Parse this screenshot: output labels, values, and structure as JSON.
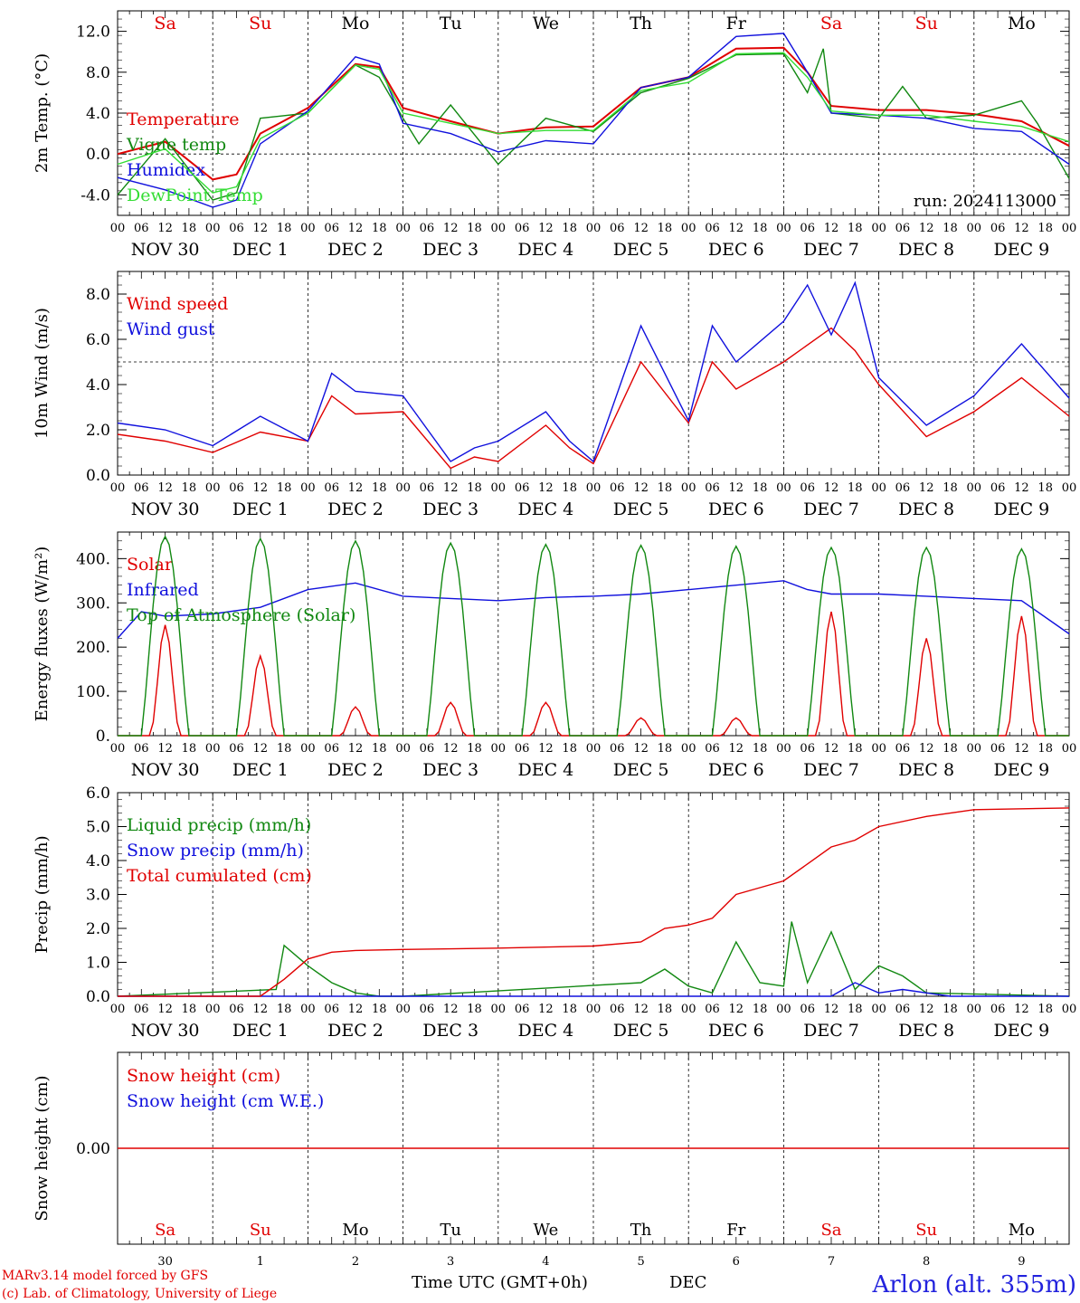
{
  "footer": {
    "model_line": "MARv3.14 model forced by GFS",
    "lab_line": "(c) Lab. of Climatology, University of Liege",
    "time_axis": "Time UTC (GMT+0h)",
    "month": "DEC",
    "station": "Arlon (alt. 355m)"
  },
  "day_names": [
    "Sa",
    "Su",
    "Mo",
    "Tu",
    "We",
    "Th",
    "Fr",
    "Sa",
    "Su",
    "Mo"
  ],
  "day_name_colors": [
    "#e00000",
    "#e00000",
    "#000000",
    "#000000",
    "#000000",
    "#000000",
    "#000000",
    "#e00000",
    "#e00000",
    "#000000"
  ],
  "date_labels": [
    "NOV 30",
    "DEC  1",
    "DEC  2",
    "DEC  3",
    "DEC  4",
    "DEC  5",
    "DEC  6",
    "DEC  7",
    "DEC  8",
    "DEC  9"
  ],
  "day_numbers": [
    "30",
    "1",
    "2",
    "3",
    "4",
    "5",
    "6",
    "7",
    "8",
    "9"
  ],
  "hour_labels": [
    "00",
    "06",
    "12",
    "18"
  ],
  "hour_end_label": "00",
  "run_label": "run: 2024113000",
  "colors": {
    "red": "#e00000",
    "green": "#118811",
    "blue": "#1010dd",
    "lightgreen": "#33dd33",
    "grid": "#000000"
  },
  "chart_data": [
    {
      "type": "line",
      "ylabel": "2m Temp. (°C)",
      "ylim": [
        -6,
        14
      ],
      "ytick_labels": [
        "-4.0",
        "0.0",
        "4.0",
        "8.0",
        "12.0"
      ],
      "dashed_ref": 0,
      "x_units": "hours from 2024-11-30 00 UTC",
      "series": [
        {
          "name": "Temperature",
          "color": "red",
          "x": [
            0,
            12,
            24,
            30,
            36,
            48,
            60,
            66,
            72,
            84,
            96,
            108,
            120,
            132,
            144,
            156,
            168,
            174,
            180,
            192,
            204,
            216,
            228,
            240
          ],
          "y": [
            0,
            1.2,
            -2.5,
            -2,
            2,
            4.5,
            8.8,
            8.5,
            4.5,
            3.2,
            2,
            2.6,
            2.7,
            6.5,
            7.5,
            10.3,
            10.4,
            8,
            4.7,
            4.3,
            4.3,
            3.9,
            3.2,
            0.8
          ]
        },
        {
          "name": "Vigne temp",
          "color": "green",
          "x": [
            0,
            12,
            24,
            30,
            36,
            48,
            60,
            66,
            72,
            76,
            84,
            96,
            108,
            120,
            132,
            144,
            156,
            168,
            174,
            178,
            180,
            192,
            198,
            204,
            216,
            228,
            232,
            240
          ],
          "y": [
            -4,
            1.5,
            -4.5,
            -3.8,
            3.5,
            4,
            8.7,
            7.5,
            3.5,
            1,
            4.8,
            -1,
            3.5,
            2.2,
            6,
            7.4,
            9.7,
            9.8,
            6,
            10.3,
            4,
            3.5,
            6.6,
            3.5,
            3.8,
            5.2,
            3,
            -2.4
          ]
        },
        {
          "name": "Humidex",
          "color": "blue",
          "x": [
            0,
            12,
            24,
            30,
            36,
            48,
            60,
            66,
            72,
            84,
            96,
            108,
            120,
            132,
            144,
            156,
            168,
            174,
            180,
            192,
            204,
            216,
            228,
            240
          ],
          "y": [
            -2.3,
            -3.5,
            -5.2,
            -4.5,
            1,
            4.2,
            9.5,
            8.8,
            3,
            2,
            0.2,
            1.3,
            1,
            6.5,
            7.5,
            11.5,
            11.8,
            8,
            4,
            3.8,
            3.5,
            2.5,
            2.2,
            -1
          ]
        },
        {
          "name": "DewPoint Temp",
          "color": "lightgreen",
          "x": [
            0,
            12,
            24,
            30,
            36,
            48,
            60,
            66,
            72,
            84,
            96,
            108,
            120,
            132,
            144,
            156,
            168,
            174,
            180,
            192,
            204,
            216,
            228,
            240
          ],
          "y": [
            -1,
            0.5,
            -3.8,
            -3.2,
            1.5,
            4,
            8.7,
            8.3,
            4,
            3,
            2,
            2.3,
            2.3,
            6.2,
            7,
            9.8,
            9.9,
            7.5,
            4.2,
            3.8,
            3.8,
            3.2,
            2.7,
            1.2
          ]
        }
      ]
    },
    {
      "type": "line",
      "ylabel": "10m Wind (m/s)",
      "ylim": [
        0,
        9
      ],
      "ytick_labels": [
        "0.0",
        "2.0",
        "4.0",
        "6.0",
        "8.0"
      ],
      "dashed_ref": 5,
      "series": [
        {
          "name": "Wind speed",
          "color": "red",
          "x": [
            0,
            12,
            24,
            36,
            48,
            54,
            60,
            72,
            84,
            90,
            96,
            108,
            114,
            120,
            132,
            144,
            150,
            156,
            168,
            180,
            186,
            192,
            204,
            216,
            228,
            240
          ],
          "y": [
            1.8,
            1.5,
            1,
            1.9,
            1.5,
            3.5,
            2.7,
            2.8,
            0.3,
            0.8,
            0.6,
            2.2,
            1.2,
            0.5,
            5,
            2.3,
            5,
            3.8,
            5,
            6.5,
            5.5,
            4,
            1.7,
            2.8,
            4.3,
            2.6
          ]
        },
        {
          "name": "Wind gust",
          "color": "blue",
          "x": [
            0,
            12,
            24,
            36,
            48,
            54,
            60,
            72,
            84,
            90,
            96,
            108,
            114,
            120,
            132,
            144,
            150,
            156,
            168,
            174,
            180,
            186,
            192,
            204,
            216,
            228,
            240
          ],
          "y": [
            2.3,
            2,
            1.3,
            2.6,
            1.5,
            4.5,
            3.7,
            3.5,
            0.6,
            1.2,
            1.5,
            2.8,
            1.5,
            0.6,
            6.6,
            2.4,
            6.6,
            5,
            6.8,
            8.4,
            6.2,
            8.5,
            4.3,
            2.2,
            3.5,
            5.8,
            3.4
          ]
        }
      ]
    },
    {
      "type": "line",
      "ylabel": "Energy fluxes (W/m²)",
      "ylim": [
        0,
        460
      ],
      "ytick_labels": [
        "0.",
        "100.",
        "200.",
        "300.",
        "400."
      ],
      "series": [
        {
          "name": "Solar",
          "color": "red",
          "peaks": [
            250,
            180,
            65,
            75,
            75,
            40,
            40,
            280,
            220,
            270
          ]
        },
        {
          "name": "Infrared",
          "color": "blue",
          "x": [
            0,
            6,
            12,
            24,
            36,
            48,
            60,
            72,
            84,
            96,
            108,
            120,
            132,
            144,
            156,
            168,
            174,
            180,
            192,
            204,
            216,
            228,
            240
          ],
          "y": [
            220,
            280,
            270,
            275,
            290,
            330,
            345,
            315,
            310,
            305,
            312,
            315,
            320,
            330,
            340,
            350,
            330,
            320,
            320,
            315,
            310,
            305,
            230
          ]
        },
        {
          "name": "Top of Atmosphere (Solar)",
          "color": "green",
          "peaks": [
            450,
            445,
            440,
            435,
            432,
            430,
            428,
            425,
            425,
            422
          ]
        }
      ]
    },
    {
      "type": "line",
      "ylabel": "Precip (mm/h)",
      "ylim": [
        0,
        6.0
      ],
      "ytick_labels": [
        "0.0",
        "1.0",
        "2.0",
        "3.0",
        "4.0",
        "5.0",
        "6.0"
      ],
      "series": [
        {
          "name": "Liquid precip (mm/h)",
          "color": "green",
          "x": [
            0,
            40,
            42,
            48,
            54,
            60,
            66,
            72,
            132,
            138,
            144,
            150,
            156,
            162,
            168,
            170,
            174,
            180,
            186,
            192,
            198,
            204,
            240
          ],
          "y": [
            0,
            0.2,
            1.5,
            0.9,
            0.4,
            0.1,
            0,
            0,
            0.4,
            0.8,
            0.3,
            0.1,
            1.6,
            0.4,
            0.3,
            2.2,
            0.4,
            1.9,
            0.2,
            0.9,
            0.6,
            0.1,
            0
          ]
        },
        {
          "name": "Snow precip (mm/h)",
          "color": "blue",
          "x": [
            0,
            180,
            186,
            192,
            198,
            204,
            210,
            240
          ],
          "y": [
            0,
            0,
            0.4,
            0.1,
            0.2,
            0.1,
            0,
            0
          ]
        },
        {
          "name": "Total cumulated (cm)",
          "color": "red",
          "x": [
            0,
            36,
            42,
            48,
            54,
            60,
            72,
            96,
            120,
            132,
            138,
            144,
            150,
            156,
            162,
            168,
            174,
            180,
            186,
            192,
            204,
            216,
            240
          ],
          "y": [
            0,
            0,
            0.5,
            1.1,
            1.3,
            1.35,
            1.38,
            1.42,
            1.48,
            1.6,
            2,
            2.1,
            2.3,
            3,
            3.2,
            3.4,
            3.9,
            4.4,
            4.6,
            5,
            5.3,
            5.5,
            5.55
          ]
        }
      ]
    },
    {
      "type": "line",
      "ylabel": "Snow height (cm)",
      "ytick_labels": [
        "0.00"
      ],
      "series": [
        {
          "name": "Snow height (cm)",
          "color": "red",
          "x": [
            0,
            240
          ],
          "y": [
            0,
            0
          ]
        },
        {
          "name": "Snow height (cm W.E.)",
          "color": "blue",
          "x": [],
          "y": []
        }
      ]
    }
  ]
}
